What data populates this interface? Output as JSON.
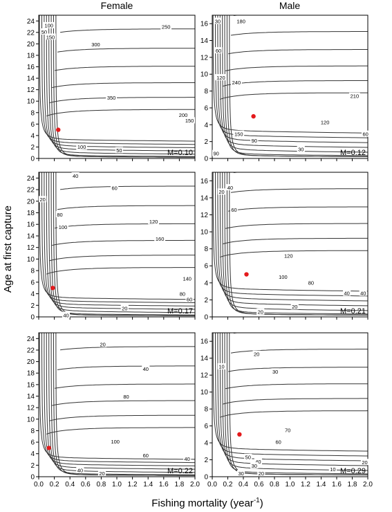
{
  "figure": {
    "col_titles": [
      "Female",
      "Male"
    ],
    "xlabel_main": "Fishing mortality (year",
    "xlabel_sup": "-1",
    "xlabel_end": ")",
    "ylabel": "Age at first capture"
  },
  "chart_data": [
    {
      "type": "contour",
      "column": "Female",
      "row": 1,
      "panel_label": "M=0.10",
      "xlim": [
        0,
        2.0
      ],
      "ylim": [
        0,
        25
      ],
      "xticks": [
        "0.0",
        "0.2",
        "0.4",
        "0.6",
        "0.8",
        "1.0",
        "1.2",
        "1.4",
        "1.6",
        "1.8",
        "2.0"
      ],
      "yticks": [
        "0",
        "2",
        "4",
        "6",
        "8",
        "10",
        "12",
        "14",
        "16",
        "18",
        "20",
        "22",
        "24"
      ],
      "optimum": {
        "x": 0.25,
        "y": 5
      },
      "contour_labels": [
        {
          "text": "250",
          "x": 1.63,
          "y": 23.0
        },
        {
          "text": "300",
          "x": 0.73,
          "y": 19.9
        },
        {
          "text": "350",
          "x": 0.93,
          "y": 10.6
        },
        {
          "text": "200",
          "x": 1.85,
          "y": 7.6
        },
        {
          "text": "150",
          "x": 1.93,
          "y": 6.6
        },
        {
          "text": "100",
          "x": 0.55,
          "y": 2.0
        },
        {
          "text": "50",
          "x": 1.03,
          "y": 1.4
        },
        {
          "text": "50",
          "x": 0.07,
          "y": 22.1
        },
        {
          "text": "100",
          "x": 0.13,
          "y": 23.2
        },
        {
          "text": "150",
          "x": 0.15,
          "y": 21.2
        }
      ]
    },
    {
      "type": "contour",
      "column": "Male",
      "row": 1,
      "panel_label": "M=0.12",
      "xlim": [
        0,
        2.0
      ],
      "ylim": [
        0,
        17
      ],
      "xticks": [
        "0.0",
        "0.2",
        "0.4",
        "0.6",
        "0.8",
        "1.0",
        "1.2",
        "1.4",
        "1.6",
        "1.8",
        "2.0"
      ],
      "yticks": [
        "0",
        "2",
        "4",
        "6",
        "8",
        "10",
        "12",
        "14",
        "16"
      ],
      "optimum": {
        "x": 0.53,
        "y": 5
      },
      "contour_labels": [
        {
          "text": "30",
          "x": 0.07,
          "y": 16.3
        },
        {
          "text": "180",
          "x": 0.37,
          "y": 16.3
        },
        {
          "text": "60",
          "x": 0.08,
          "y": 12.8
        },
        {
          "text": "120",
          "x": 0.11,
          "y": 9.6
        },
        {
          "text": "240",
          "x": 0.31,
          "y": 9.0
        },
        {
          "text": "210",
          "x": 1.83,
          "y": 7.4
        },
        {
          "text": "120",
          "x": 1.45,
          "y": 4.3
        },
        {
          "text": "60",
          "x": 1.97,
          "y": 2.9
        },
        {
          "text": "150",
          "x": 0.34,
          "y": 2.9
        },
        {
          "text": "90",
          "x": 0.54,
          "y": 2.1
        },
        {
          "text": "90",
          "x": 0.05,
          "y": 0.6
        },
        {
          "text": "30",
          "x": 1.14,
          "y": 1.1
        }
      ]
    },
    {
      "type": "contour",
      "column": "Female",
      "row": 2,
      "panel_label": "M=0.17",
      "xlim": [
        0,
        2.0
      ],
      "ylim": [
        0,
        25
      ],
      "xticks": [
        "0.0",
        "0.2",
        "0.4",
        "0.6",
        "0.8",
        "1.0",
        "1.2",
        "1.4",
        "1.6",
        "1.8",
        "2.0"
      ],
      "yticks": [
        "0",
        "2",
        "4",
        "6",
        "8",
        "10",
        "12",
        "14",
        "16",
        "18",
        "20",
        "22",
        "24"
      ],
      "optimum": {
        "x": 0.18,
        "y": 5
      },
      "contour_labels": [
        {
          "text": "40",
          "x": 0.47,
          "y": 24.4
        },
        {
          "text": "60",
          "x": 0.97,
          "y": 22.3
        },
        {
          "text": "20",
          "x": 0.05,
          "y": 20.3
        },
        {
          "text": "80",
          "x": 0.27,
          "y": 17.7
        },
        {
          "text": "100",
          "x": 0.31,
          "y": 15.5
        },
        {
          "text": "120",
          "x": 1.47,
          "y": 16.5
        },
        {
          "text": "160",
          "x": 1.55,
          "y": 13.5
        },
        {
          "text": "140",
          "x": 1.9,
          "y": 6.6
        },
        {
          "text": "80",
          "x": 1.84,
          "y": 4.0
        },
        {
          "text": "60",
          "x": 1.93,
          "y": 3.0
        },
        {
          "text": "20",
          "x": 1.1,
          "y": 1.5
        },
        {
          "text": "40",
          "x": 0.35,
          "y": 0.3
        }
      ]
    },
    {
      "type": "contour",
      "column": "Male",
      "row": 2,
      "panel_label": "M=0.21",
      "xlim": [
        0,
        2.0
      ],
      "ylim": [
        0,
        17
      ],
      "xticks": [
        "0.0",
        "0.2",
        "0.4",
        "0.6",
        "0.8",
        "1.0",
        "1.2",
        "1.4",
        "1.6",
        "1.8",
        "2.0"
      ],
      "yticks": [
        "0",
        "2",
        "4",
        "6",
        "8",
        "10",
        "12",
        "14",
        "16"
      ],
      "optimum": {
        "x": 0.44,
        "y": 5
      },
      "contour_labels": [
        {
          "text": "40",
          "x": 0.23,
          "y": 15.2
        },
        {
          "text": "20",
          "x": 0.12,
          "y": 14.7
        },
        {
          "text": "60",
          "x": 0.28,
          "y": 12.6
        },
        {
          "text": "120",
          "x": 0.98,
          "y": 7.2
        },
        {
          "text": "100",
          "x": 0.91,
          "y": 4.7
        },
        {
          "text": "80",
          "x": 1.27,
          "y": 4.0
        },
        {
          "text": "40",
          "x": 1.73,
          "y": 2.8
        },
        {
          "text": "40",
          "x": 1.94,
          "y": 2.8
        },
        {
          "text": "20",
          "x": 1.06,
          "y": 1.2
        },
        {
          "text": "20",
          "x": 0.62,
          "y": 0.6
        }
      ]
    },
    {
      "type": "contour",
      "column": "Female",
      "row": 3,
      "panel_label": "M=0.22",
      "xlim": [
        0,
        2.0
      ],
      "ylim": [
        0,
        25
      ],
      "xticks": [
        "0.0",
        "0.2",
        "0.4",
        "0.6",
        "0.8",
        "1.0",
        "1.2",
        "1.4",
        "1.6",
        "1.8",
        "2.0"
      ],
      "yticks": [
        "0",
        "2",
        "4",
        "6",
        "8",
        "10",
        "12",
        "14",
        "16",
        "18",
        "20",
        "22",
        "24"
      ],
      "optimum": {
        "x": 0.13,
        "y": 5
      },
      "contour_labels": [
        {
          "text": "20",
          "x": 0.82,
          "y": 23.0
        },
        {
          "text": "40",
          "x": 1.37,
          "y": 18.7
        },
        {
          "text": "80",
          "x": 1.12,
          "y": 13.9
        },
        {
          "text": "100",
          "x": 0.98,
          "y": 6.1
        },
        {
          "text": "60",
          "x": 1.37,
          "y": 3.7
        },
        {
          "text": "40",
          "x": 1.9,
          "y": 3.1
        },
        {
          "text": "40",
          "x": 0.53,
          "y": 1.1
        },
        {
          "text": "20",
          "x": 0.81,
          "y": 0.6
        }
      ]
    },
    {
      "type": "contour",
      "column": "Male",
      "row": 3,
      "panel_label": "M=0.29",
      "xlim": [
        0,
        2.0
      ],
      "ylim": [
        0,
        17
      ],
      "xticks": [
        "0.0",
        "0.2",
        "0.4",
        "0.6",
        "0.8",
        "1.0",
        "1.2",
        "1.4",
        "1.6",
        "1.8",
        "2.0"
      ],
      "yticks": [
        "0",
        "2",
        "4",
        "6",
        "8",
        "10",
        "12",
        "14",
        "16"
      ],
      "optimum": {
        "x": 0.35,
        "y": 5
      },
      "contour_labels": [
        {
          "text": "10",
          "x": 0.12,
          "y": 13.0
        },
        {
          "text": "20",
          "x": 0.57,
          "y": 14.5
        },
        {
          "text": "30",
          "x": 0.81,
          "y": 12.4
        },
        {
          "text": "70",
          "x": 0.97,
          "y": 5.5
        },
        {
          "text": "60",
          "x": 0.85,
          "y": 4.1
        },
        {
          "text": "50",
          "x": 0.46,
          "y": 2.3
        },
        {
          "text": "40",
          "x": 0.59,
          "y": 1.8
        },
        {
          "text": "30",
          "x": 0.54,
          "y": 1.3
        },
        {
          "text": "20",
          "x": 1.96,
          "y": 1.7
        },
        {
          "text": "10",
          "x": 1.55,
          "y": 0.9
        },
        {
          "text": "30",
          "x": 0.37,
          "y": 0.4
        },
        {
          "text": "20",
          "x": 0.63,
          "y": 0.4
        }
      ]
    }
  ]
}
